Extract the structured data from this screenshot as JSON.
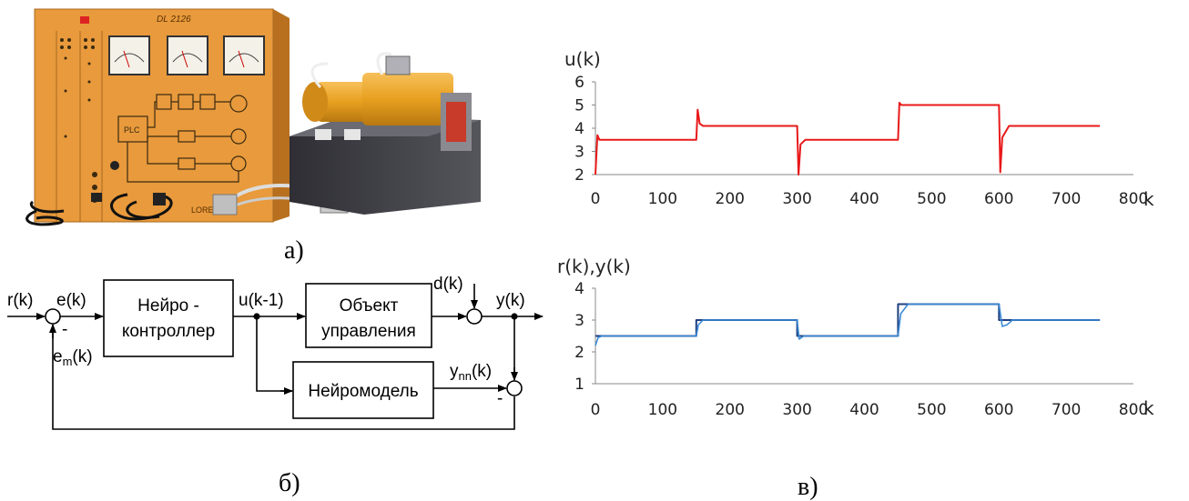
{
  "panel_labels": {
    "photo": "а)",
    "block_diagram": "б)",
    "charts": "в)"
  },
  "photo": {
    "equipment_label": "DL 2126",
    "brand_label": "LORENZO",
    "plc_label": "PLC",
    "colors": {
      "panel": "#E89A3C",
      "motor": "#E8A020",
      "base": "#3A3A40"
    }
  },
  "block_diagram": {
    "signals": {
      "r": "r(k)",
      "e": "e(k)",
      "u": "u(k-1)",
      "d": "d(k)",
      "y": "y(k)",
      "em_base": "e",
      "em_sub": "m",
      "em_tail": "(k)",
      "ynn_base": "y",
      "ynn_sub": "nn",
      "ynn_tail": "(k)"
    },
    "blocks": {
      "controller_line1": "Нейро -",
      "controller_line2": "контроллер",
      "plant_line1": "Объект",
      "plant_line2": "управления",
      "model": "Нейромодель"
    },
    "signs": {
      "sum1_minus": "-",
      "sum3_minus": "-"
    }
  },
  "chart_data": [
    {
      "type": "line",
      "title": "u(k)",
      "xlabel": "k",
      "ylabel": "",
      "xlim": [
        0,
        800
      ],
      "ylim": [
        2,
        6
      ],
      "xticks": [
        0,
        100,
        200,
        300,
        400,
        500,
        600,
        700,
        800
      ],
      "yticks": [
        2,
        3,
        4,
        5,
        6
      ],
      "grid": false,
      "series": [
        {
          "color": "#E8191A",
          "x": [
            0,
            3,
            6,
            150,
            152,
            155,
            160,
            300,
            302,
            305,
            312,
            450,
            452,
            455,
            600,
            602,
            605,
            615,
            750
          ],
          "y": [
            2.0,
            3.7,
            3.5,
            3.5,
            4.8,
            4.2,
            4.1,
            4.1,
            2.0,
            3.3,
            3.5,
            3.5,
            5.1,
            5.0,
            5.0,
            2.1,
            3.6,
            4.1,
            4.1
          ]
        }
      ]
    },
    {
      "type": "line",
      "title": "r(k),y(k)",
      "xlabel": "k",
      "ylabel": "",
      "xlim": [
        0,
        800
      ],
      "ylim": [
        1,
        4
      ],
      "xticks": [
        0,
        100,
        200,
        300,
        400,
        500,
        600,
        700,
        800
      ],
      "yticks": [
        1,
        2,
        3,
        4
      ],
      "grid": false,
      "series": [
        {
          "color": "#1F3F80",
          "x": [
            0,
            150,
            150,
            300,
            300,
            450,
            450,
            600,
            600,
            750
          ],
          "y": [
            2.5,
            2.5,
            3.0,
            3.0,
            2.5,
            2.5,
            3.5,
            3.5,
            3.0,
            3.0
          ]
        },
        {
          "color": "#3C8CD8",
          "x": [
            0,
            4,
            10,
            150,
            153,
            160,
            300,
            303,
            310,
            450,
            454,
            465,
            600,
            605,
            612,
            620,
            750
          ],
          "y": [
            2.2,
            2.45,
            2.5,
            2.5,
            2.85,
            3.0,
            3.0,
            2.4,
            2.5,
            2.5,
            3.2,
            3.5,
            3.5,
            2.8,
            2.85,
            3.0,
            3.0
          ]
        }
      ]
    }
  ]
}
